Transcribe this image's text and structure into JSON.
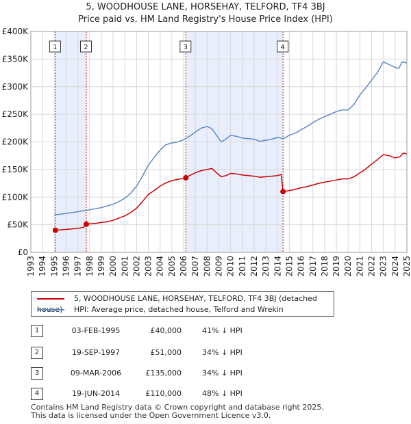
{
  "title": {
    "line1": "5, WOODHOUSE LANE, HORSEHAY, TELFORD, TF4 3BJ",
    "line2": "Price paid vs. HM Land Registry's House Price Index (HPI)"
  },
  "colors": {
    "property": "#cc0000",
    "hpi": "#5b8ac6",
    "shade": "#e8eefb"
  },
  "chart_data": {
    "type": "line",
    "xlim": [
      1993,
      2025
    ],
    "ylim": [
      0,
      400000
    ],
    "x_ticks": [
      "1993",
      "1994",
      "1995",
      "1996",
      "1997",
      "1998",
      "1999",
      "2000",
      "2001",
      "2002",
      "2003",
      "2004",
      "2005",
      "2006",
      "2007",
      "2008",
      "2009",
      "2010",
      "2011",
      "2012",
      "2013",
      "2014",
      "2015",
      "2016",
      "2017",
      "2018",
      "2019",
      "2020",
      "2021",
      "2022",
      "2023",
      "2024",
      "2025"
    ],
    "y_ticks": [
      {
        "value": 0,
        "label": "£0"
      },
      {
        "value": 50000,
        "label": "£50K"
      },
      {
        "value": 100000,
        "label": "£100K"
      },
      {
        "value": 150000,
        "label": "£150K"
      },
      {
        "value": 200000,
        "label": "£200K"
      },
      {
        "value": 250000,
        "label": "£250K"
      },
      {
        "value": 300000,
        "label": "£300K"
      },
      {
        "value": 350000,
        "label": "£350K"
      },
      {
        "value": 400000,
        "label": "£400K"
      }
    ],
    "grid": true,
    "series": [
      {
        "name": "5, WOODHOUSE LANE, HORSEHAY, TELFORD, TF4 3BJ (detached house)",
        "color": "#cc0000",
        "points": [
          [
            1995.09,
            40000
          ],
          [
            1995.5,
            40500
          ],
          [
            1996.0,
            41500
          ],
          [
            1996.5,
            42500
          ],
          [
            1997.0,
            43500
          ],
          [
            1997.5,
            45500
          ],
          [
            1997.72,
            51000
          ],
          [
            1998.0,
            51500
          ],
          [
            1998.5,
            52500
          ],
          [
            1999.0,
            54000
          ],
          [
            1999.5,
            55500
          ],
          [
            2000.0,
            58000
          ],
          [
            2000.5,
            62000
          ],
          [
            2001.0,
            66000
          ],
          [
            2001.5,
            72000
          ],
          [
            2002.0,
            80000
          ],
          [
            2002.5,
            92000
          ],
          [
            2003.0,
            105000
          ],
          [
            2003.5,
            112000
          ],
          [
            2004.0,
            120000
          ],
          [
            2004.5,
            126000
          ],
          [
            2005.0,
            130000
          ],
          [
            2005.5,
            132000
          ],
          [
            2006.19,
            135000
          ],
          [
            2006.5,
            139000
          ],
          [
            2007.0,
            144000
          ],
          [
            2007.5,
            148000
          ],
          [
            2008.0,
            150000
          ],
          [
            2008.4,
            152000
          ],
          [
            2008.8,
            144000
          ],
          [
            2009.2,
            137000
          ],
          [
            2009.6,
            139000
          ],
          [
            2010.0,
            143000
          ],
          [
            2010.5,
            142000
          ],
          [
            2011.0,
            140000
          ],
          [
            2011.5,
            139000
          ],
          [
            2012.0,
            138000
          ],
          [
            2012.5,
            136000
          ],
          [
            2013.0,
            137000
          ],
          [
            2013.5,
            138000
          ],
          [
            2014.0,
            139000
          ],
          [
            2014.3,
            141000
          ],
          [
            2014.46,
            110000
          ],
          [
            2015.0,
            112000
          ],
          [
            2015.5,
            114000
          ],
          [
            2016.0,
            117000
          ],
          [
            2016.5,
            119000
          ],
          [
            2017.0,
            122000
          ],
          [
            2017.5,
            125000
          ],
          [
            2018.0,
            127000
          ],
          [
            2018.5,
            129000
          ],
          [
            2019.0,
            131000
          ],
          [
            2019.5,
            133000
          ],
          [
            2020.0,
            133000
          ],
          [
            2020.5,
            137000
          ],
          [
            2021.0,
            144000
          ],
          [
            2021.5,
            151000
          ],
          [
            2022.0,
            160000
          ],
          [
            2022.5,
            168000
          ],
          [
            2023.0,
            177000
          ],
          [
            2023.5,
            175000
          ],
          [
            2024.0,
            171000
          ],
          [
            2024.4,
            173000
          ],
          [
            2024.7,
            180000
          ],
          [
            2025.0,
            178000
          ]
        ]
      },
      {
        "name": "HPI: Average price, detached house, Telford and Wrekin",
        "color": "#5b8ac6",
        "points": [
          [
            1995.0,
            68000
          ],
          [
            1995.5,
            69000
          ],
          [
            1996.0,
            70500
          ],
          [
            1996.5,
            72000
          ],
          [
            1997.0,
            73500
          ],
          [
            1997.5,
            75500
          ],
          [
            1998.0,
            77000
          ],
          [
            1998.5,
            79000
          ],
          [
            1999.0,
            81000
          ],
          [
            1999.5,
            84000
          ],
          [
            2000.0,
            87000
          ],
          [
            2000.5,
            92000
          ],
          [
            2001.0,
            98000
          ],
          [
            2001.5,
            107000
          ],
          [
            2002.0,
            120000
          ],
          [
            2002.5,
            138000
          ],
          [
            2003.0,
            158000
          ],
          [
            2003.5,
            172000
          ],
          [
            2004.0,
            185000
          ],
          [
            2004.5,
            195000
          ],
          [
            2005.0,
            198000
          ],
          [
            2005.5,
            200000
          ],
          [
            2006.0,
            204000
          ],
          [
            2006.5,
            210000
          ],
          [
            2007.0,
            218000
          ],
          [
            2007.5,
            225000
          ],
          [
            2008.0,
            228000
          ],
          [
            2008.4,
            224000
          ],
          [
            2008.8,
            212000
          ],
          [
            2009.2,
            200000
          ],
          [
            2009.6,
            205000
          ],
          [
            2010.0,
            212000
          ],
          [
            2010.5,
            210000
          ],
          [
            2011.0,
            207000
          ],
          [
            2011.5,
            206000
          ],
          [
            2012.0,
            205000
          ],
          [
            2012.5,
            201000
          ],
          [
            2013.0,
            203000
          ],
          [
            2013.5,
            205000
          ],
          [
            2014.0,
            208000
          ],
          [
            2014.5,
            206000
          ],
          [
            2015.0,
            212000
          ],
          [
            2015.5,
            216000
          ],
          [
            2016.0,
            222000
          ],
          [
            2016.5,
            228000
          ],
          [
            2017.0,
            235000
          ],
          [
            2017.5,
            241000
          ],
          [
            2018.0,
            246000
          ],
          [
            2018.5,
            250000
          ],
          [
            2019.0,
            255000
          ],
          [
            2019.5,
            258000
          ],
          [
            2020.0,
            258000
          ],
          [
            2020.5,
            268000
          ],
          [
            2021.0,
            285000
          ],
          [
            2021.5,
            298000
          ],
          [
            2022.0,
            312000
          ],
          [
            2022.5,
            326000
          ],
          [
            2023.0,
            345000
          ],
          [
            2023.5,
            340000
          ],
          [
            2024.0,
            335000
          ],
          [
            2024.3,
            333000
          ],
          [
            2024.6,
            345000
          ],
          [
            2025.0,
            343000
          ]
        ]
      }
    ],
    "sales": [
      {
        "num": "1",
        "x": 1995.09,
        "y": 40000
      },
      {
        "num": "2",
        "x": 1997.72,
        "y": 51000
      },
      {
        "num": "3",
        "x": 2006.19,
        "y": 135000
      },
      {
        "num": "4",
        "x": 2014.46,
        "y": 110000
      }
    ],
    "shaded_ranges": [
      [
        1995.09,
        1997.72
      ],
      [
        2006.19,
        2014.46
      ]
    ]
  },
  "legend": {
    "property": "5, WOODHOUSE LANE, HORSEHAY, TELFORD, TF4 3BJ (detached house)",
    "hpi": "HPI: Average price, detached house, Telford and Wrekin"
  },
  "sales_table": [
    {
      "num": "1",
      "date": "03-FEB-1995",
      "price": "£40,000",
      "hpi": "41% ↓ HPI"
    },
    {
      "num": "2",
      "date": "19-SEP-1997",
      "price": "£51,000",
      "hpi": "34% ↓ HPI"
    },
    {
      "num": "3",
      "date": "09-MAR-2006",
      "price": "£135,000",
      "hpi": "34% ↓ HPI"
    },
    {
      "num": "4",
      "date": "19-JUN-2014",
      "price": "£110,000",
      "hpi": "48% ↓ HPI"
    }
  ],
  "footer": {
    "line1": "Contains HM Land Registry data © Crown copyright and database right 2025.",
    "line2": "This data is licensed under the Open Government Licence v3.0."
  }
}
